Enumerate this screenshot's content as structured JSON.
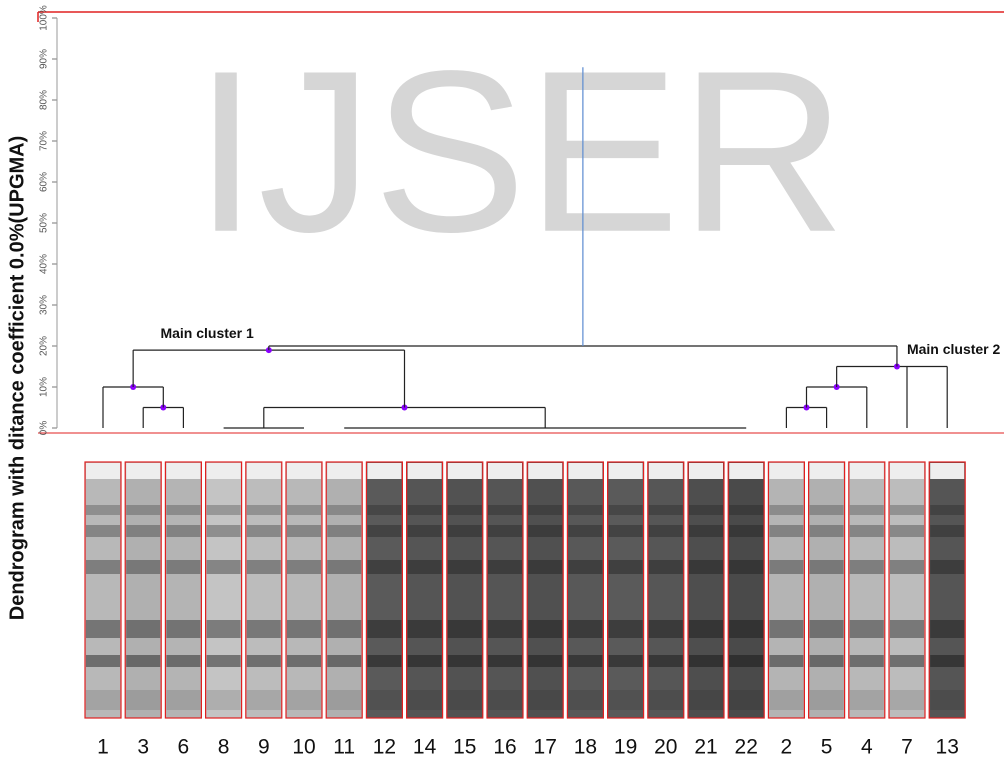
{
  "chart_data": {
    "type": "dendrogram",
    "watermark": "IJSER",
    "ylabel": "Dendrogram with ditance coefficient 0.0%(UPGMA)",
    "ylim": [
      0,
      100
    ],
    "yticks": [
      {
        "value": 0,
        "label": "0%"
      },
      {
        "value": 10,
        "label": "10%"
      },
      {
        "value": 20,
        "label": "20%"
      },
      {
        "value": 30,
        "label": "30%"
      },
      {
        "value": 40,
        "label": "40%"
      },
      {
        "value": 50,
        "label": "50%"
      },
      {
        "value": 60,
        "label": "60%"
      },
      {
        "value": 70,
        "label": "70%"
      },
      {
        "value": 80,
        "label": "80%"
      },
      {
        "value": 90,
        "label": "90%"
      },
      {
        "value": 100,
        "label": "100%"
      }
    ],
    "categories": [
      "1",
      "3",
      "6",
      "8",
      "9",
      "10",
      "11",
      "12",
      "14",
      "15",
      "16",
      "17",
      "18",
      "19",
      "20",
      "21",
      "22",
      "2",
      "5",
      "4",
      "7",
      "13"
    ],
    "lane_colors": [
      "#b8b8b8",
      "#b0b0b0",
      "#b4b4b4",
      "#c4c4c4",
      "#bcbcbc",
      "#b8b8b8",
      "#b0b0b0",
      "#5a5a5a",
      "#555555",
      "#525252",
      "#555555",
      "#505050",
      "#585858",
      "#5a5a5a",
      "#565656",
      "#4e4e4e",
      "#4a4a4a",
      "#b4b4b4",
      "#b0b0b0",
      "#b8b8b8",
      "#bcbcbc",
      "#555555"
    ],
    "merges": [
      {
        "children": [
          {
            "leaf": 1
          },
          {
            "leaf": 2
          }
        ],
        "height": 5
      },
      {
        "children": [
          {
            "leaf": 0
          },
          {
            "node": 0
          }
        ],
        "height": 10
      },
      {
        "children": [
          {
            "leaf": 3
          },
          {
            "leaf": 4
          },
          {
            "leaf": 5
          }
        ],
        "height": 0
      },
      {
        "children": [
          {
            "leaf": 6
          },
          {
            "leaf": 7
          },
          {
            "leaf": 8
          },
          {
            "leaf": 9
          },
          {
            "leaf": 10
          },
          {
            "leaf": 11
          },
          {
            "leaf": 12
          },
          {
            "leaf": 13
          },
          {
            "leaf": 14
          },
          {
            "leaf": 15
          },
          {
            "leaf": 16
          }
        ],
        "height": 0
      },
      {
        "children": [
          {
            "node": 2
          },
          {
            "node": 3
          }
        ],
        "height": 5
      },
      {
        "children": [
          {
            "node": 1
          },
          {
            "node": 4
          }
        ],
        "height": 19,
        "label": "Main cluster 1"
      },
      {
        "children": [
          {
            "leaf": 17
          },
          {
            "leaf": 18
          }
        ],
        "height": 5
      },
      {
        "children": [
          {
            "node": 6
          },
          {
            "leaf": 19
          }
        ],
        "height": 10
      },
      {
        "children": [
          {
            "node": 7
          },
          {
            "leaf": 20
          },
          {
            "leaf": 21
          }
        ],
        "height": 15,
        "label": "Main cluster 2"
      },
      {
        "children": [
          {
            "node": 5
          },
          {
            "node": 8
          }
        ],
        "height": 20
      }
    ],
    "root_height": 88,
    "line_color": "#222222",
    "root_color": "#5b8bd0",
    "dot_color": "#8a00ff",
    "frame_color": "#e02020"
  }
}
